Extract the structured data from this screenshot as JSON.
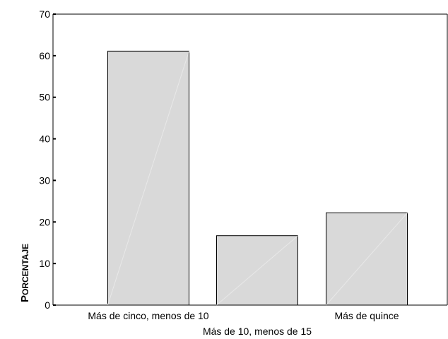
{
  "chart_data": {
    "type": "bar",
    "categories": [
      "Más de cinco, menos de 10",
      "Más de 10, menos de 15",
      "Más de quince"
    ],
    "values": [
      61.1,
      16.7,
      22.2
    ],
    "title": "",
    "xlabel": "",
    "ylabel": "Porcentaje",
    "ylim": [
      0,
      70
    ],
    "yticks": [
      0,
      10,
      20,
      30,
      40,
      50,
      60,
      70
    ],
    "grid": false,
    "legend": "none",
    "colors": {
      "bar_fill": "#d9d9d9",
      "bar_stroke": "#000000",
      "axis": "#000000"
    }
  }
}
